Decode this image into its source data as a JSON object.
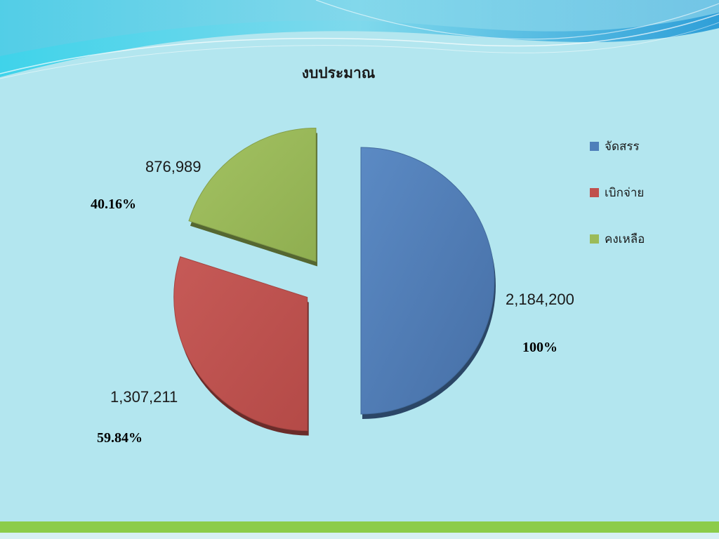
{
  "chart_data": {
    "type": "pie",
    "title": "งบประมาณ",
    "categories": [
      "จัดสรร",
      "เบิกจ่าย",
      "คงเหลือ"
    ],
    "values": [
      2184200,
      1307211,
      876989
    ],
    "value_labels": [
      "2,184,200",
      "1,307,211",
      "876,989"
    ],
    "percent_labels": [
      "100%",
      "59.84%",
      "40.16%"
    ],
    "colors": [
      "#4f7fba",
      "#c0504d",
      "#9bbb59"
    ],
    "legend_position": "right",
    "exploded": true,
    "style": "3d"
  }
}
